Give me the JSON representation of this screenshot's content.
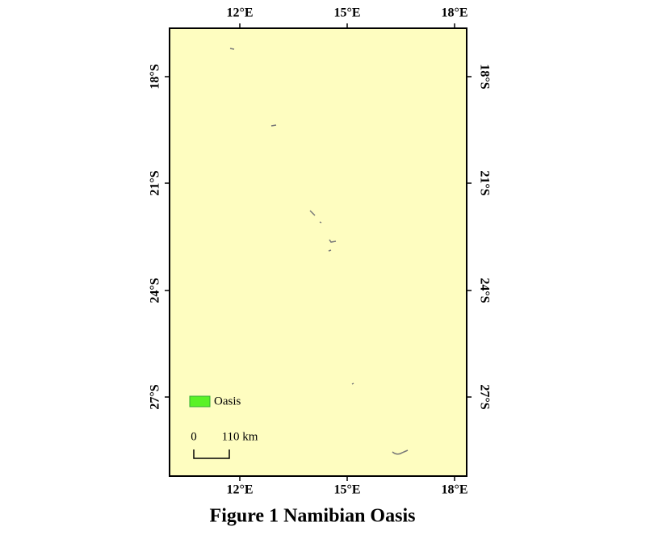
{
  "map": {
    "top_labels": [
      "12°E",
      "15°E",
      "18°E"
    ],
    "bottom_labels": [
      "12°E",
      "15°E",
      "18°E"
    ],
    "left_labels": [
      "18°S",
      "21°S",
      "24°S",
      "27°S"
    ],
    "right_labels": [
      "18°S",
      "21°S",
      "24°S",
      "27°S"
    ],
    "legend": {
      "label": "Oasis"
    },
    "scale_bar": {
      "start": "0",
      "end": "110 km"
    }
  },
  "caption": "Figure 1  Namibian Oasis"
}
